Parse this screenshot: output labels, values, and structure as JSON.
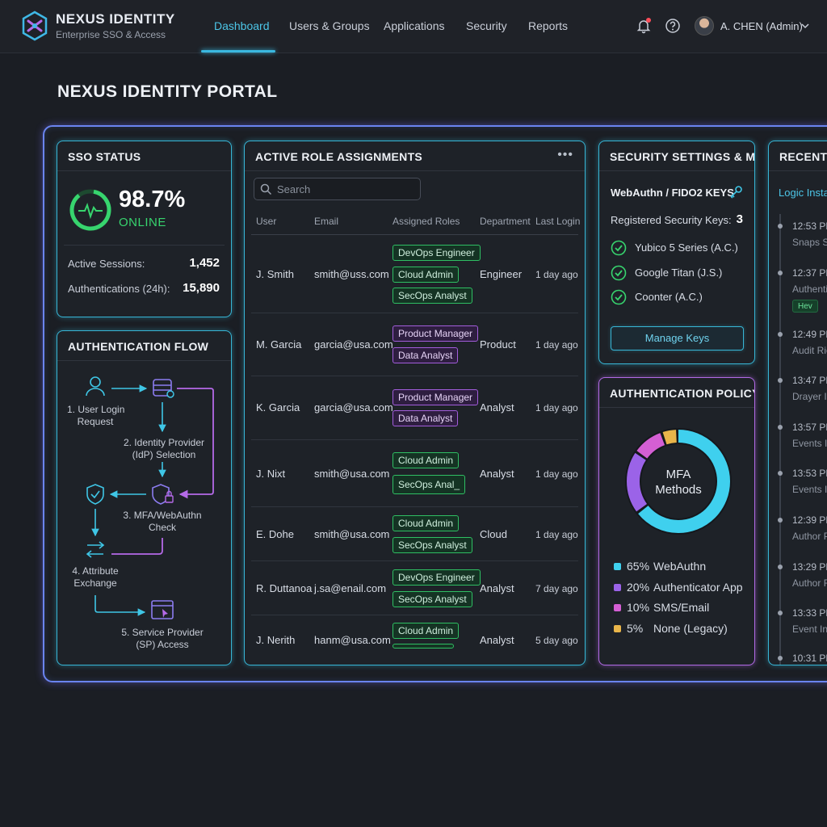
{
  "brand": {
    "name": "NEXUS IDENTITY",
    "subtitle": "Enterprise SSO & Access"
  },
  "nav": {
    "items": [
      {
        "label": "Dashboard",
        "active": true
      },
      {
        "label": "Users & Groups"
      },
      {
        "label": "Applications"
      },
      {
        "label": "Security"
      },
      {
        "label": "Reports"
      }
    ]
  },
  "topbar": {
    "user_name": "A. CHEN (Admin)",
    "icons": [
      "bell-icon",
      "help-icon",
      "chevron-down-icon"
    ]
  },
  "page": {
    "title": "NEXUS IDENTITY PORTAL"
  },
  "sso": {
    "title": "SSO STATUS",
    "uptime": "98.7%",
    "state": "ONLINE",
    "stats": [
      {
        "label": "Active Sessions:",
        "value": "1,452"
      },
      {
        "label": "Authentications (24h):",
        "value": "15,890"
      }
    ]
  },
  "flow": {
    "title": "AUTHENTICATION FLOW",
    "steps": [
      {
        "line1": "1. User Login",
        "line2": "Request"
      },
      {
        "line1": "2. Identity Provider",
        "line2": "(IdP) Selection"
      },
      {
        "line1": "3. MFA/WebAuthn",
        "line2": "Check"
      },
      {
        "line1": "4. Attribute",
        "line2": "Exchange"
      },
      {
        "line1": "5. Service Provider",
        "line2": "(SP) Access"
      }
    ]
  },
  "roles": {
    "title": "ACTIVE ROLE ASSIGNMENTS",
    "menu": "•••",
    "search_placeholder": "Search",
    "columns": [
      "User",
      "Email",
      "Assigned Roles",
      "Department",
      "Last Login"
    ],
    "rows": [
      {
        "user": "J. Smith",
        "email": "smith@uss.com",
        "roles": [
          {
            "name": "DevOps Engineer",
            "color": "green"
          },
          {
            "name": "Cloud Admin",
            "color": "green"
          },
          {
            "name": "SecOps Analyst",
            "color": "green"
          }
        ],
        "department": "Engineer",
        "last_login": "1 day ago"
      },
      {
        "user": "M. Garcia",
        "email": "garcia@usa.com",
        "roles": [
          {
            "name": "Product Manager",
            "color": "purple"
          },
          {
            "name": "Data Analyst",
            "color": "purple"
          }
        ],
        "department": "Product",
        "last_login": "1 day ago"
      },
      {
        "user": "K. Garcia",
        "email": "garcia@usa.com",
        "roles": [
          {
            "name": "Product Manager",
            "color": "purple"
          },
          {
            "name": "Data Analyst",
            "color": "purple"
          }
        ],
        "department": "Analyst",
        "last_login": "1 day ago"
      },
      {
        "user": "J. Nixt",
        "email": "smith@usa.com",
        "roles": [
          {
            "name": "Cloud Admin",
            "color": "green"
          },
          {
            "name": "SecOps Anal_",
            "color": "green"
          }
        ],
        "department": "Analyst",
        "last_login": "1 day ago"
      },
      {
        "user": "E. Dohe",
        "email": "smith@usa.com",
        "roles": [
          {
            "name": "Cloud Admin",
            "color": "green"
          },
          {
            "name": "SecOps Analyst",
            "color": "green"
          }
        ],
        "department": "Cloud",
        "last_login": "1 day ago"
      },
      {
        "user": "R. Duttanoa",
        "email": "j.sa@enail.com",
        "roles": [
          {
            "name": "DevOps Engineer",
            "color": "green"
          },
          {
            "name": "SecOps Analyst",
            "color": "green"
          }
        ],
        "department": "Analyst",
        "last_login": "7 day ago"
      },
      {
        "user": "J. Nerith",
        "email": "hanm@usa.com",
        "roles": [
          {
            "name": "Cloud Admin",
            "color": "green"
          }
        ],
        "department": "Analyst",
        "last_login": "5 day ago"
      }
    ]
  },
  "security": {
    "title": "SECURITY SETTINGS & MFA",
    "section": "WebAuthn / FIDO2 KEYS",
    "registered_label": "Registered Security Keys:",
    "registered_count": "3",
    "keys": [
      "Yubico 5 Series (A.C.)",
      "Google Titan (J.S.)",
      "Coonter (A.C.)"
    ],
    "button": "Manage Keys"
  },
  "policy": {
    "title": "AUTHENTICATION POLICY",
    "center_line1": "MFA",
    "center_line2": "Methods",
    "methods": [
      {
        "pct": "65%",
        "name": "WebAuthn",
        "value": 65,
        "color": "#3fd0ee"
      },
      {
        "pct": "20%",
        "name": "Authenticator App",
        "value": 20,
        "color": "#9b63e8"
      },
      {
        "pct": "10%",
        "name": "SMS/Email",
        "value": 10,
        "color": "#d45fd4"
      },
      {
        "pct": "5%",
        "name": "None (Legacy)",
        "value": 5,
        "color": "#e9b54a"
      }
    ]
  },
  "recent": {
    "title": "RECENT A",
    "link": "Logic Insta",
    "events": [
      {
        "time": "12:53 PM",
        "text": "Snaps Si"
      },
      {
        "time": "12:37 PM",
        "text": "Authenti",
        "badge": "Hev"
      },
      {
        "time": "12:49 PM",
        "text": "Audit Rie"
      },
      {
        "time": "13:47 PM",
        "text": "Drayer Io"
      },
      {
        "time": "13:57 PM",
        "text": "Events Io"
      },
      {
        "time": "13:53 PM",
        "text": "Events In"
      },
      {
        "time": "12:39 PM",
        "text": "Author P"
      },
      {
        "time": "13:29 PM",
        "text": "Author R"
      },
      {
        "time": "13:33 PM",
        "text": "Event Int"
      },
      {
        "time": "10:31 PM",
        "text": ""
      }
    ]
  }
}
